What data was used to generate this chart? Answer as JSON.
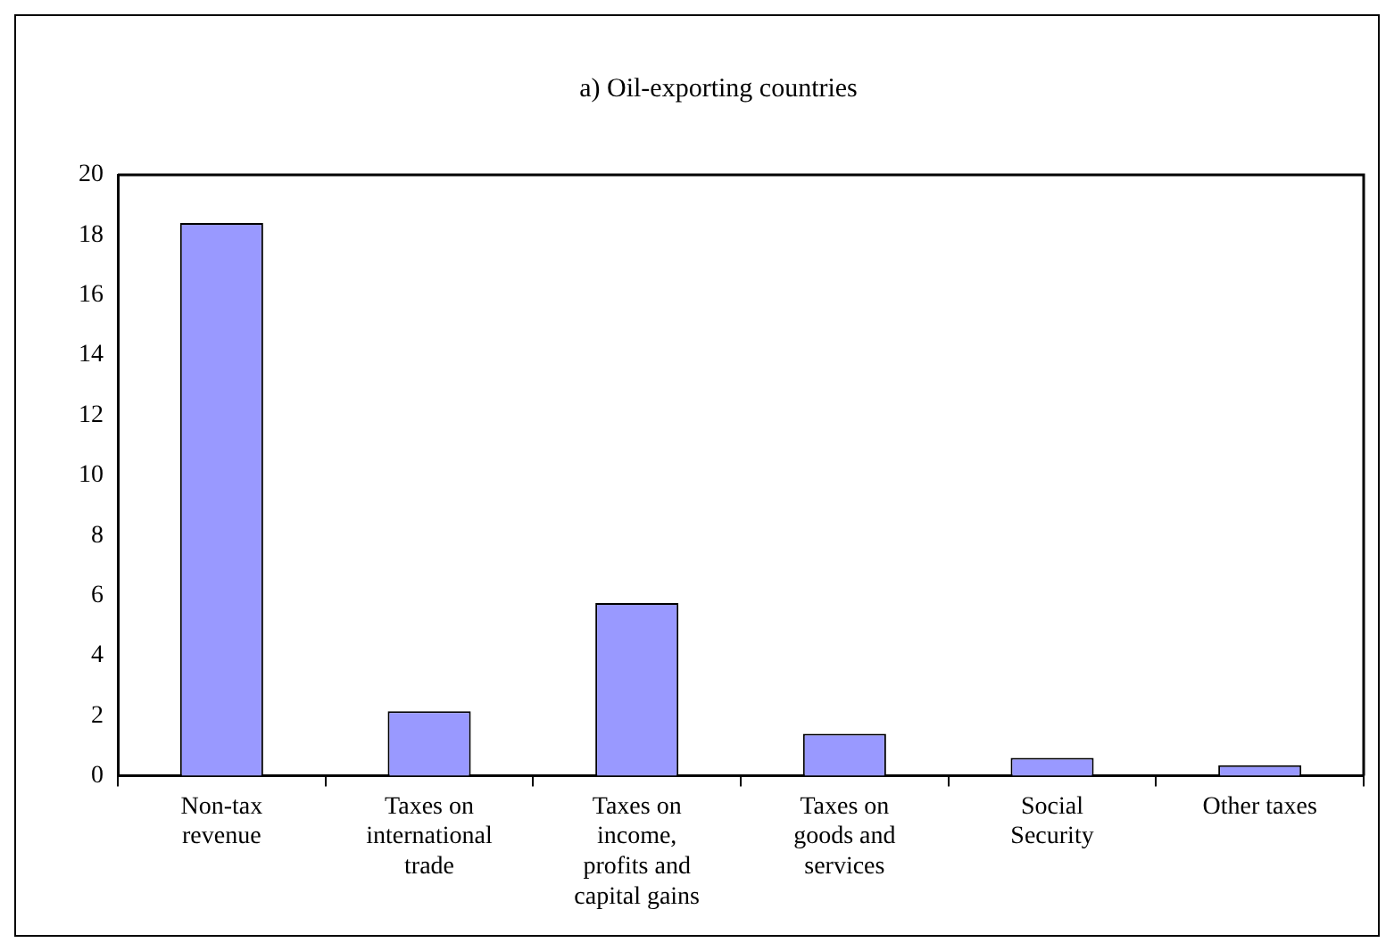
{
  "chart_data": {
    "type": "bar",
    "title": "a) Oil-exporting countries",
    "categories": [
      "Non-tax revenue",
      "Taxes on international trade",
      "Taxes on income, profits and capital gains",
      "Taxes on goods and services",
      "Social Security",
      "Other taxes"
    ],
    "values": [
      18.4,
      2.15,
      5.75,
      1.4,
      0.6,
      0.35
    ],
    "color": "#9999ff",
    "ylim": [
      0,
      20
    ],
    "yticks": [
      0,
      2,
      4,
      6,
      8,
      10,
      12,
      14,
      16,
      18,
      20
    ],
    "legend": false
  }
}
